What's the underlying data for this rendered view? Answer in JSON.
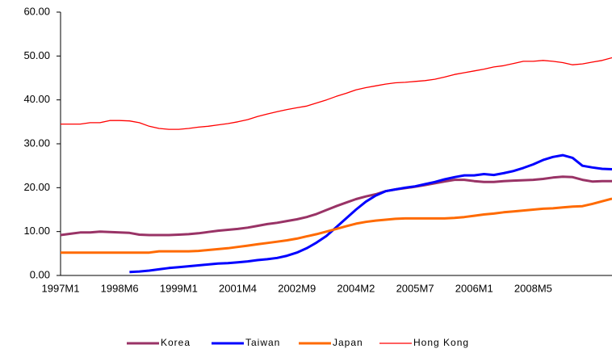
{
  "chart_data": {
    "type": "line",
    "categories": [
      "1997M1",
      null,
      null,
      null,
      null,
      null,
      "1998M6",
      null,
      null,
      null,
      null,
      null,
      "1999M1",
      null,
      null,
      null,
      null,
      null,
      "2001M4",
      null,
      null,
      null,
      null,
      null,
      "2002M9",
      null,
      null,
      null,
      null,
      null,
      "2004M2",
      null,
      null,
      null,
      null,
      null,
      "2005M7",
      null,
      null,
      null,
      null,
      null,
      "2006M1",
      null,
      null,
      null,
      null,
      null,
      "2008M5",
      null,
      null,
      null,
      null,
      null,
      null,
      null,
      null
    ],
    "series": [
      {
        "name": "Korea",
        "color": "#993366",
        "width": 3,
        "values": [
          9.2,
          9.5,
          9.8,
          9.8,
          10,
          9.9,
          9.8,
          9.7,
          9.3,
          9.2,
          9.2,
          9.2,
          9.3,
          9.4,
          9.6,
          9.9,
          10.2,
          10.4,
          10.6,
          10.9,
          11.3,
          11.7,
          12,
          12.4,
          12.8,
          13.3,
          14,
          14.9,
          15.8,
          16.6,
          17.4,
          18,
          18.5,
          19.2,
          19.6,
          19.9,
          20.2,
          20.6,
          21,
          21.4,
          21.8,
          21.8,
          21.5,
          21.3,
          21.3,
          21.5,
          21.6,
          21.7,
          21.8,
          22,
          22.3,
          22.5,
          22.4,
          21.8,
          21.4,
          21.5,
          21.5
        ]
      },
      {
        "name": "Taiwan",
        "color": "#0000ff",
        "width": 3,
        "values": [
          null,
          null,
          null,
          null,
          null,
          null,
          null,
          0.8,
          0.9,
          1.1,
          1.4,
          1.7,
          1.9,
          2.1,
          2.3,
          2.5,
          2.7,
          2.8,
          3.0,
          3.2,
          3.5,
          3.7,
          4.0,
          4.5,
          5.2,
          6.2,
          7.5,
          9,
          11,
          13,
          15,
          16.8,
          18.2,
          19.2,
          19.6,
          20,
          20.3,
          20.8,
          21.3,
          21.9,
          22.4,
          22.8,
          22.8,
          23.1,
          22.9,
          23.3,
          23.8,
          24.5,
          25.3,
          26.3,
          27,
          27.4,
          26.8,
          25,
          24.6,
          24.3,
          24.2
        ]
      },
      {
        "name": "Japan",
        "color": "#ff6a00",
        "width": 3,
        "values": [
          5.2,
          5.2,
          5.2,
          5.2,
          5.2,
          5.2,
          5.2,
          5.2,
          5.2,
          5.2,
          5.5,
          5.5,
          5.5,
          5.5,
          5.6,
          5.8,
          6.0,
          6.2,
          6.5,
          6.8,
          7.1,
          7.4,
          7.7,
          8.0,
          8.4,
          8.9,
          9.4,
          10,
          10.6,
          11.2,
          11.8,
          12.2,
          12.5,
          12.7,
          12.9,
          13,
          13,
          13,
          13,
          13,
          13.1,
          13.3,
          13.6,
          13.9,
          14.1,
          14.4,
          14.6,
          14.8,
          15,
          15.2,
          15.3,
          15.5,
          15.7,
          15.8,
          16.3,
          16.9,
          17.5
        ]
      },
      {
        "name": "Hong Kong",
        "color": "#ff0000",
        "width": 1.3,
        "values": [
          34.5,
          34.5,
          34.5,
          34.8,
          34.8,
          35.3,
          35.3,
          35.2,
          34.8,
          34,
          33.5,
          33.3,
          33.3,
          33.5,
          33.8,
          34,
          34.3,
          34.6,
          35,
          35.5,
          36.2,
          36.8,
          37.3,
          37.8,
          38.2,
          38.6,
          39.3,
          40,
          40.8,
          41.5,
          42.3,
          42.8,
          43.2,
          43.6,
          43.9,
          44,
          44.2,
          44.4,
          44.7,
          45.2,
          45.8,
          46.2,
          46.6,
          47,
          47.5,
          47.8,
          48.3,
          48.8,
          48.8,
          49,
          48.8,
          48.5,
          48,
          48.2,
          48.6,
          49,
          49.6
        ]
      }
    ],
    "ylim": [
      0,
      60
    ],
    "yticks": [
      {
        "value": 0,
        "label": "0.00"
      },
      {
        "value": 10,
        "label": "10.00"
      },
      {
        "value": 20,
        "label": "20.00"
      },
      {
        "value": 30,
        "label": "30.00"
      },
      {
        "value": 40,
        "label": "40.00"
      },
      {
        "value": 50,
        "label": "50.00"
      },
      {
        "value": 60,
        "label": "60.00"
      }
    ],
    "legend": "bottom"
  }
}
